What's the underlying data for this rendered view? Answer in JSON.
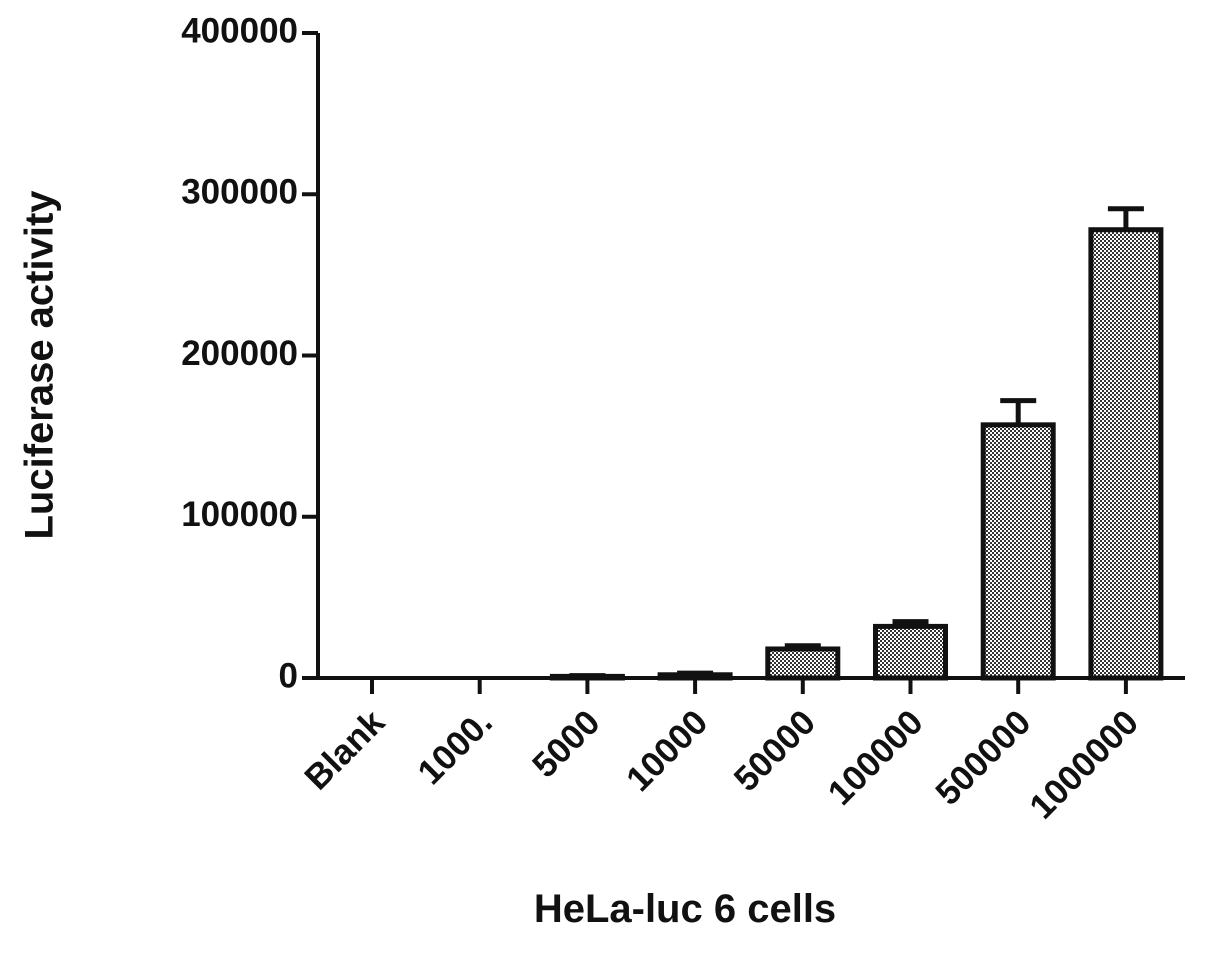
{
  "chart_data": {
    "type": "bar",
    "x_label": "HeLa-luc 6 cells",
    "y_label": "Luciferase activity",
    "categories": [
      "Blank",
      "1000.",
      "5000",
      "10000",
      "50000",
      "100000",
      "500000",
      "1000000"
    ],
    "values": [
      0,
      0,
      1000,
      2000,
      18000,
      32000,
      157000,
      278000
    ],
    "errors": [
      0,
      0,
      500,
      1000,
      2000,
      3000,
      15000,
      13000
    ],
    "ylim": [
      0,
      400000
    ],
    "yticks": [
      0,
      100000,
      200000,
      300000,
      400000
    ],
    "color": "#888888"
  }
}
